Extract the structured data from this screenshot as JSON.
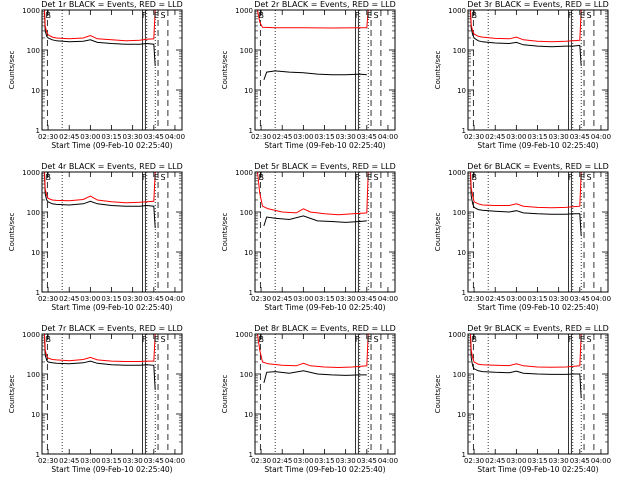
{
  "figure": {
    "xlabel": "Start Time (09-Feb-10 02:25:40)",
    "ylabel": "Counts/sec",
    "x_ticks": [
      "02:30",
      "02:45",
      "03:00",
      "03:15",
      "03:30",
      "03:45",
      "04:00"
    ],
    "x_tick_minutes": [
      30,
      45,
      60,
      75,
      90,
      105,
      120
    ],
    "y_ticks": [
      "1",
      "10",
      "100",
      "1000"
    ],
    "y_tick_values": [
      1,
      10,
      100,
      1000
    ],
    "colors": {
      "events": "#000000",
      "lld": "#ff0000",
      "axes": "#000000"
    },
    "flags": [
      "B",
      "F",
      "E",
      "S"
    ]
  },
  "chart_data": [
    {
      "type": "line",
      "title": "Det 1r BLACK = Events, RED = LLD",
      "xlabel": "Start Time (09-Feb-10 02:25:40)",
      "ylabel": "Counts/sec",
      "xlim_minutes": [
        25.7,
        125
      ],
      "ylim": [
        1,
        1000
      ],
      "yscale": "log",
      "series": [
        {
          "name": "Events",
          "color": "#000000",
          "x": [
            27.5,
            28,
            29,
            30,
            33,
            36,
            45,
            55,
            60,
            65,
            75,
            85,
            95,
            100,
            105,
            106
          ],
          "y": [
            900,
            300,
            220,
            200,
            180,
            170,
            160,
            165,
            180,
            155,
            145,
            140,
            140,
            145,
            140,
            40
          ]
        },
        {
          "name": "LLD",
          "color": "#ff0000",
          "x": [
            27.5,
            28,
            29,
            30,
            33,
            36,
            45,
            55,
            60,
            65,
            75,
            85,
            95,
            100,
            105,
            106
          ],
          "y": [
            1000,
            400,
            280,
            240,
            210,
            200,
            190,
            200,
            230,
            190,
            180,
            170,
            175,
            185,
            190,
            1000
          ]
        }
      ],
      "vlines": {
        "dashed": [
          29.5,
          108,
          115
        ],
        "dotted": [
          40,
          100,
          106
        ],
        "solid": [
          97,
          99
        ]
      }
    },
    {
      "type": "line",
      "title": "Det 2r BLACK = Events, RED = LLD",
      "xlabel": "Start Time (09-Feb-10 02:25:40)",
      "ylabel": "Counts/sec",
      "xlim_minutes": [
        25.7,
        125
      ],
      "ylim": [
        1,
        1000
      ],
      "yscale": "log",
      "series": [
        {
          "name": "Events",
          "color": "#000000",
          "x": [
            32,
            34,
            40,
            50,
            60,
            70,
            80,
            90,
            100,
            105
          ],
          "y": [
            18,
            28,
            30,
            28,
            27,
            25,
            24,
            24,
            25,
            24
          ]
        },
        {
          "name": "LLD",
          "color": "#ff0000",
          "x": [
            27.5,
            29,
            31,
            40,
            60,
            80,
            100,
            105,
            106
          ],
          "y": [
            1000,
            500,
            370,
            360,
            360,
            355,
            360,
            360,
            1000
          ]
        }
      ],
      "vlines": {
        "dashed": [
          29.5,
          108,
          115
        ],
        "dotted": [
          40,
          100,
          106
        ],
        "solid": [
          97,
          99
        ]
      }
    },
    {
      "type": "line",
      "title": "Det 3r BLACK = Events, RED = LLD",
      "xlabel": "Start Time (09-Feb-10 02:25:40)",
      "ylabel": "Counts/sec",
      "xlim_minutes": [
        25.7,
        125
      ],
      "ylim": [
        1,
        1000
      ],
      "yscale": "log",
      "series": [
        {
          "name": "Events",
          "color": "#000000",
          "x": [
            27.5,
            28,
            29,
            30,
            33,
            36,
            45,
            55,
            60,
            65,
            75,
            85,
            95,
            100,
            105,
            106
          ],
          "y": [
            900,
            350,
            240,
            200,
            170,
            160,
            150,
            145,
            155,
            135,
            125,
            120,
            125,
            125,
            130,
            40
          ]
        },
        {
          "name": "LLD",
          "color": "#ff0000",
          "x": [
            27.5,
            28,
            29,
            30,
            33,
            36,
            45,
            55,
            60,
            65,
            75,
            85,
            95,
            100,
            105,
            106
          ],
          "y": [
            1000,
            420,
            300,
            250,
            220,
            210,
            195,
            190,
            210,
            180,
            165,
            160,
            165,
            170,
            175,
            1000
          ]
        }
      ],
      "vlines": {
        "dashed": [
          29.5,
          108,
          115
        ],
        "dotted": [
          40,
          100,
          106
        ],
        "solid": [
          97,
          99
        ]
      }
    },
    {
      "type": "line",
      "title": "Det 4r BLACK = Events, RED = LLD",
      "xlabel": "Start Time (09-Feb-10 02:25:40)",
      "ylabel": "Counts/sec",
      "xlim_minutes": [
        25.7,
        125
      ],
      "ylim": [
        1,
        1000
      ],
      "yscale": "log",
      "series": [
        {
          "name": "Events",
          "color": "#000000",
          "x": [
            27.5,
            28,
            29,
            30,
            33,
            36,
            45,
            55,
            60,
            65,
            75,
            85,
            95,
            100,
            105,
            106
          ],
          "y": [
            900,
            280,
            200,
            180,
            160,
            155,
            150,
            160,
            185,
            160,
            145,
            140,
            140,
            145,
            140,
            40
          ]
        },
        {
          "name": "LLD",
          "color": "#ff0000",
          "x": [
            27.5,
            28,
            29,
            30,
            33,
            36,
            45,
            55,
            60,
            65,
            75,
            85,
            95,
            100,
            105,
            106
          ],
          "y": [
            1000,
            380,
            260,
            220,
            200,
            195,
            190,
            205,
            250,
            200,
            180,
            170,
            175,
            180,
            185,
            1000
          ]
        }
      ],
      "vlines": {
        "dashed": [
          29.5,
          108,
          115
        ],
        "dotted": [
          40,
          100,
          106
        ],
        "solid": [
          97,
          99
        ]
      }
    },
    {
      "type": "line",
      "title": "Det 5r BLACK = Events, RED = LLD",
      "xlabel": "Start Time (09-Feb-10 02:25:40)",
      "ylabel": "Counts/sec",
      "xlim_minutes": [
        25.7,
        125
      ],
      "ylim": [
        1,
        1000
      ],
      "yscale": "log",
      "series": [
        {
          "name": "Events",
          "color": "#000000",
          "x": [
            32,
            34,
            40,
            50,
            60,
            70,
            80,
            90,
            100,
            105
          ],
          "y": [
            45,
            75,
            70,
            65,
            80,
            60,
            58,
            55,
            58,
            60
          ]
        },
        {
          "name": "LLD",
          "color": "#ff0000",
          "x": [
            27.5,
            29,
            31,
            35,
            45,
            55,
            60,
            65,
            75,
            85,
            95,
            100,
            105,
            106
          ],
          "y": [
            1000,
            300,
            140,
            120,
            100,
            95,
            120,
            100,
            90,
            85,
            90,
            92,
            95,
            1000
          ]
        }
      ],
      "vlines": {
        "dashed": [
          29.5,
          108,
          115
        ],
        "dotted": [
          40,
          100,
          106
        ],
        "solid": [
          97,
          99
        ]
      }
    },
    {
      "type": "line",
      "title": "Det 6r BLACK = Events, RED = LLD",
      "xlabel": "Start Time (09-Feb-10 02:25:40)",
      "ylabel": "Counts/sec",
      "xlim_minutes": [
        25.7,
        125
      ],
      "ylim": [
        1,
        1000
      ],
      "yscale": "log",
      "series": [
        {
          "name": "Events",
          "color": "#000000",
          "x": [
            27.5,
            28,
            29,
            30,
            33,
            36,
            45,
            55,
            60,
            65,
            75,
            85,
            95,
            100,
            105,
            106
          ],
          "y": [
            900,
            250,
            160,
            130,
            115,
            110,
            105,
            100,
            108,
            95,
            90,
            88,
            88,
            90,
            90,
            25
          ]
        },
        {
          "name": "LLD",
          "color": "#ff0000",
          "x": [
            27.5,
            28,
            29,
            30,
            33,
            36,
            45,
            55,
            60,
            65,
            75,
            85,
            95,
            100,
            105,
            106
          ],
          "y": [
            1000,
            400,
            250,
            180,
            160,
            150,
            145,
            145,
            160,
            140,
            130,
            128,
            130,
            135,
            140,
            1000
          ]
        }
      ],
      "vlines": {
        "dashed": [
          29.5,
          108,
          115
        ],
        "dotted": [
          40,
          100,
          106
        ],
        "solid": [
          97,
          99
        ]
      }
    },
    {
      "type": "line",
      "title": "Det 7r BLACK = Events, RED = LLD",
      "xlabel": "Start Time (09-Feb-10 02:25:40)",
      "ylabel": "Counts/sec",
      "xlim_minutes": [
        25.7,
        125
      ],
      "ylim": [
        1,
        1000
      ],
      "yscale": "log",
      "series": [
        {
          "name": "Events",
          "color": "#000000",
          "x": [
            27.5,
            28,
            29,
            30,
            33,
            36,
            45,
            55,
            60,
            65,
            75,
            85,
            95,
            100,
            105,
            106
          ],
          "y": [
            900,
            300,
            220,
            200,
            190,
            185,
            180,
            190,
            210,
            185,
            170,
            165,
            165,
            170,
            165,
            40
          ]
        },
        {
          "name": "LLD",
          "color": "#ff0000",
          "x": [
            27.5,
            28,
            29,
            30,
            33,
            36,
            45,
            55,
            60,
            65,
            75,
            85,
            95,
            100,
            105,
            106
          ],
          "y": [
            1000,
            400,
            280,
            250,
            230,
            225,
            215,
            230,
            260,
            225,
            210,
            205,
            205,
            210,
            210,
            1000
          ]
        }
      ],
      "vlines": {
        "dashed": [
          29.5,
          108,
          115
        ],
        "dotted": [
          40,
          100,
          106
        ],
        "solid": [
          97,
          99
        ]
      }
    },
    {
      "type": "line",
      "title": "Det 8r BLACK = Events, RED = LLD",
      "xlabel": "Start Time (09-Feb-10 02:25:40)",
      "ylabel": "Counts/sec",
      "xlim_minutes": [
        25.7,
        125
      ],
      "ylim": [
        1,
        1000
      ],
      "yscale": "log",
      "series": [
        {
          "name": "Events",
          "color": "#000000",
          "x": [
            32,
            34,
            40,
            50,
            60,
            70,
            80,
            90,
            100,
            105
          ],
          "y": [
            60,
            110,
            115,
            105,
            120,
            100,
            95,
            92,
            95,
            95
          ]
        },
        {
          "name": "LLD",
          "color": "#ff0000",
          "x": [
            27.5,
            29,
            31,
            35,
            45,
            55,
            60,
            65,
            75,
            85,
            95,
            100,
            105,
            106
          ],
          "y": [
            1000,
            400,
            200,
            180,
            165,
            160,
            185,
            160,
            150,
            145,
            150,
            155,
            160,
            1000
          ]
        }
      ],
      "vlines": {
        "dashed": [
          29.5,
          108,
          115
        ],
        "dotted": [
          40,
          100,
          106
        ],
        "solid": [
          97,
          99
        ]
      }
    },
    {
      "type": "line",
      "title": "Det 9r BLACK = Events, RED = LLD",
      "xlabel": "Start Time (09-Feb-10 02:25:40)",
      "ylabel": "Counts/sec",
      "xlim_minutes": [
        25.7,
        125
      ],
      "ylim": [
        1,
        1000
      ],
      "yscale": "log",
      "series": [
        {
          "name": "Events",
          "color": "#000000",
          "x": [
            27.5,
            28,
            29,
            30,
            33,
            36,
            45,
            55,
            60,
            65,
            75,
            85,
            95,
            100,
            105,
            106
          ],
          "y": [
            900,
            250,
            160,
            135,
            120,
            115,
            110,
            108,
            118,
            105,
            100,
            98,
            98,
            100,
            100,
            25
          ]
        },
        {
          "name": "LLD",
          "color": "#ff0000",
          "x": [
            27.5,
            28,
            29,
            30,
            33,
            36,
            45,
            55,
            60,
            65,
            75,
            85,
            95,
            100,
            105,
            106
          ],
          "y": [
            1000,
            400,
            250,
            200,
            175,
            170,
            165,
            162,
            180,
            160,
            150,
            148,
            150,
            155,
            160,
            1000
          ]
        }
      ],
      "vlines": {
        "dashed": [
          29.5,
          108,
          115
        ],
        "dotted": [
          40,
          100,
          106
        ],
        "solid": [
          97,
          99
        ]
      }
    }
  ]
}
